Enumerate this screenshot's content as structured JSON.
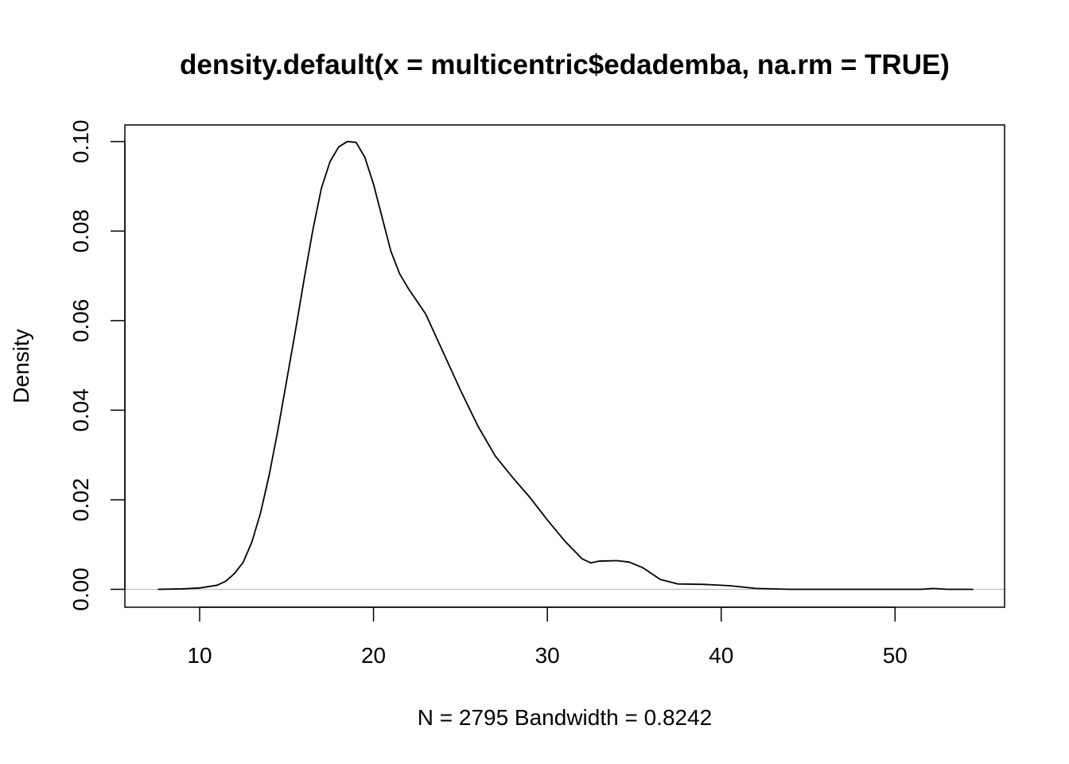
{
  "chart_data": {
    "type": "line",
    "title": "density.default(x = multicentric$edademba, na.rm = TRUE)",
    "xlabel": "N = 2795   Bandwidth = 0.8242",
    "ylabel": "Density",
    "xlim": [
      5.7,
      56.3
    ],
    "ylim": [
      -0.004,
      0.1037
    ],
    "x_ticks": [
      10,
      20,
      30,
      40,
      50
    ],
    "x_tick_labels": [
      "10",
      "20",
      "30",
      "40",
      "50"
    ],
    "y_ticks": [
      0.0,
      0.02,
      0.04,
      0.06,
      0.08,
      0.1
    ],
    "y_tick_labels": [
      "0.00",
      "0.02",
      "0.04",
      "0.06",
      "0.08",
      "0.10"
    ],
    "baseline": 0,
    "grid": false,
    "series": [
      {
        "x": [
          7.6,
          9.0,
          10.0,
          11.0,
          11.5,
          12.0,
          12.5,
          13.0,
          13.5,
          14.0,
          14.5,
          15.0,
          15.5,
          16.0,
          16.5,
          17.0,
          17.5,
          18.0,
          18.5,
          19.0,
          19.5,
          20.0,
          20.5,
          21.0,
          21.5,
          22.0,
          23.0,
          24.0,
          25.0,
          26.0,
          27.0,
          28.0,
          29.0,
          30.0,
          31.0,
          32.0,
          32.5,
          33.0,
          34.0,
          34.7,
          35.5,
          36.5,
          37.5,
          39.0,
          40.5,
          42.0,
          44.0,
          47.0,
          50.0,
          51.5,
          52.2,
          53.0,
          54.5
        ],
        "y": [
          0.0,
          0.0001,
          0.0003,
          0.0009,
          0.0018,
          0.0035,
          0.006,
          0.0105,
          0.017,
          0.0255,
          0.0355,
          0.0465,
          0.0575,
          0.069,
          0.08,
          0.0895,
          0.0955,
          0.0988,
          0.1,
          0.0998,
          0.0965,
          0.0905,
          0.083,
          0.0755,
          0.0705,
          0.0672,
          0.0615,
          0.053,
          0.0445,
          0.0365,
          0.0298,
          0.025,
          0.0205,
          0.0155,
          0.0108,
          0.0068,
          0.0059,
          0.0063,
          0.0064,
          0.0061,
          0.0048,
          0.0022,
          0.0012,
          0.0011,
          0.0008,
          0.0002,
          0.0,
          0.0,
          0.0,
          0.0,
          0.0002,
          0.0,
          0.0
        ]
      }
    ]
  }
}
